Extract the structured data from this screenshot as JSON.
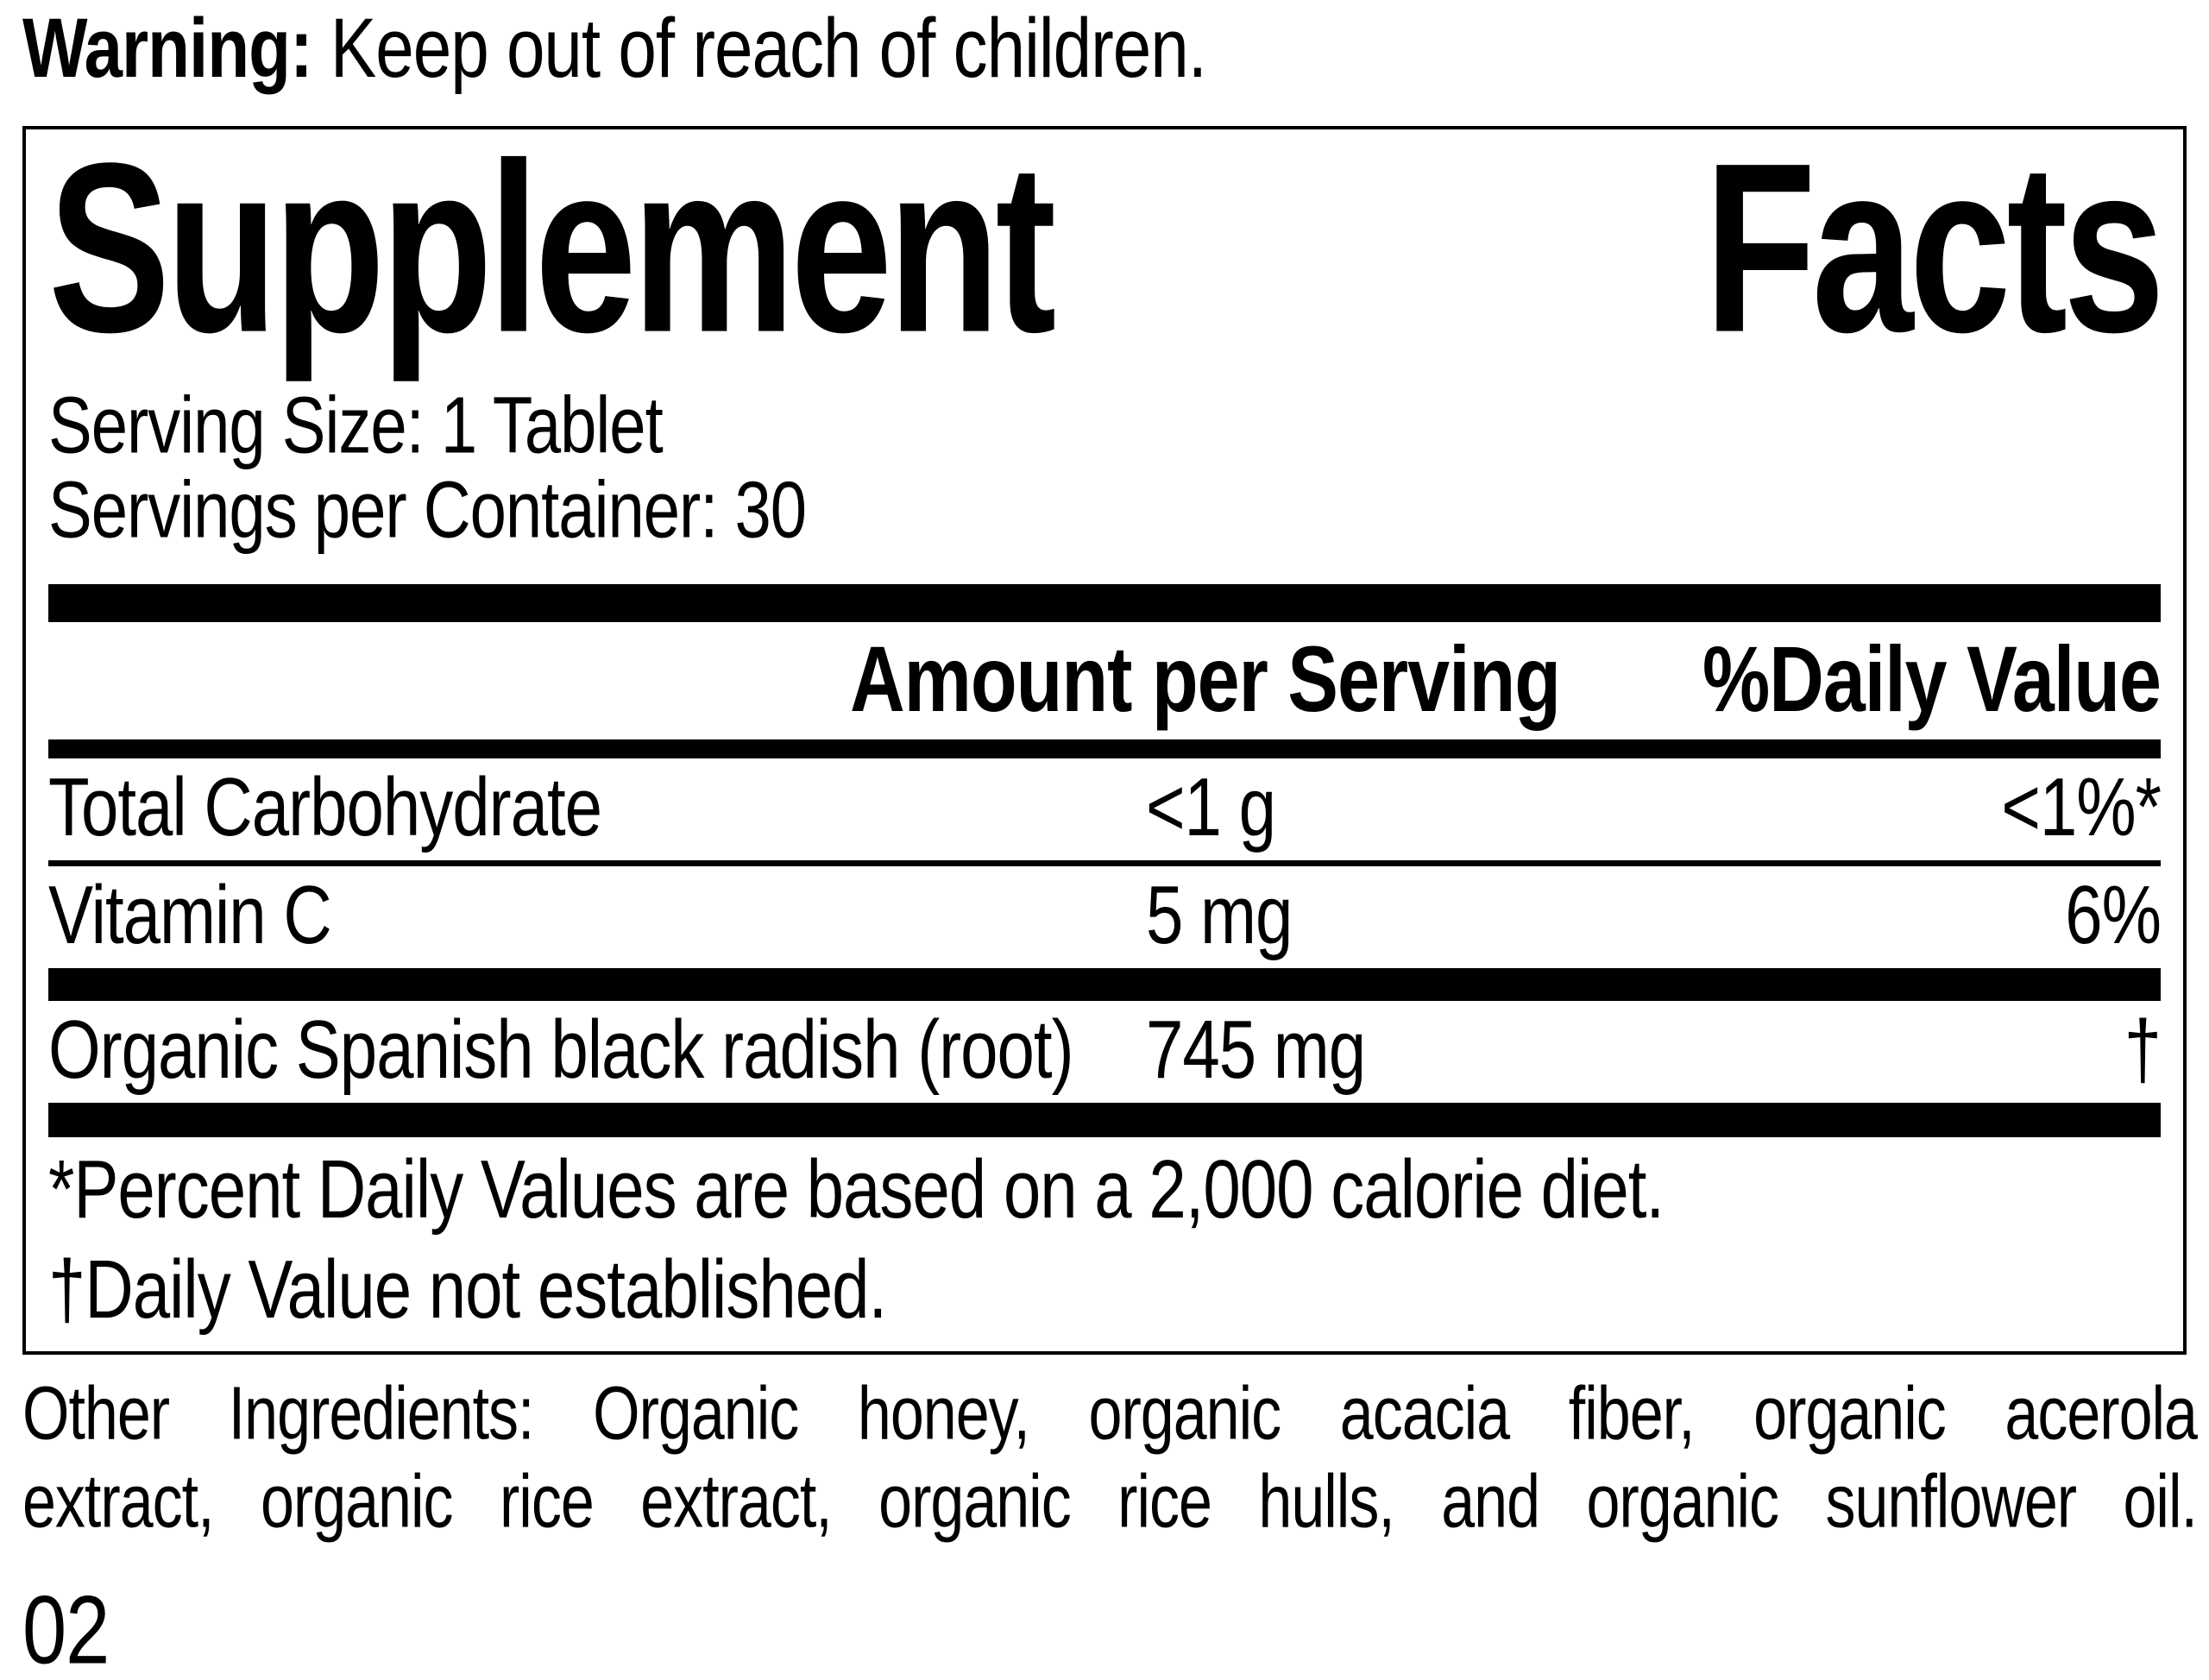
{
  "colors": {
    "ink": "#000000",
    "background": "#ffffff"
  },
  "warning": {
    "label": "Warning:",
    "text": "Keep out of reach of children."
  },
  "panel": {
    "title_words": [
      "Supplement",
      "Facts"
    ],
    "serving_size": "Serving Size: 1 Tablet",
    "servings_per_container": "Servings per Container: 30",
    "columns": {
      "amount": "Amount per Serving",
      "daily_value": "%Daily Value"
    },
    "rows": [
      {
        "name": "Total Carbohydrate",
        "amount": "<1 g",
        "daily_value": "<1%*"
      },
      {
        "name": "Vitamin C",
        "amount": "5 mg",
        "daily_value": "6%"
      },
      {
        "name": "Organic Spanish black radish (root)",
        "amount": "745 mg",
        "daily_value": "†"
      }
    ],
    "footnotes": [
      "*Percent Daily Values are based on a 2,000 calorie diet.",
      "†Daily Value not established."
    ]
  },
  "other_ingredients": {
    "line1": "Other Ingredients: Organic honey, organic acacia fiber, organic acerola",
    "line2": "extract, organic rice extract, organic rice hulls, and organic sunflower oil."
  },
  "page_number": "02"
}
